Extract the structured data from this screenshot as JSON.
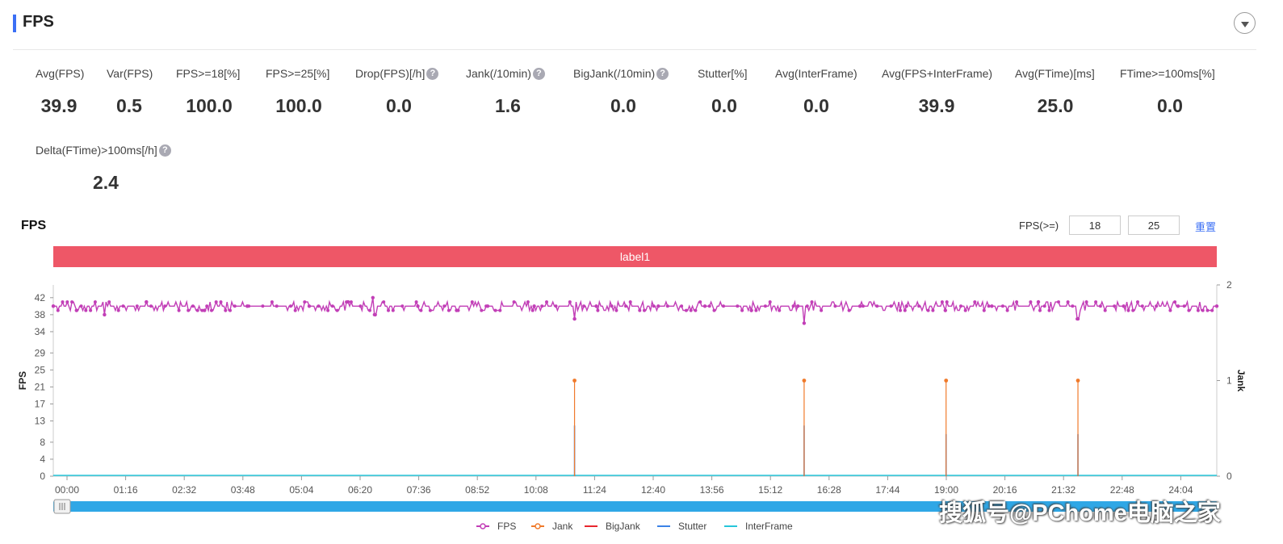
{
  "header": {
    "title": "FPS"
  },
  "metrics": [
    {
      "label": "Avg(FPS)",
      "value": "39.9",
      "help": false
    },
    {
      "label": "Var(FPS)",
      "value": "0.5",
      "help": false
    },
    {
      "label": "FPS>=18[%]",
      "value": "100.0",
      "help": false
    },
    {
      "label": "FPS>=25[%]",
      "value": "100.0",
      "help": false
    },
    {
      "label": "Drop(FPS)[/h]",
      "value": "0.0",
      "help": true
    },
    {
      "label": "Jank(/10min)",
      "value": "1.6",
      "help": true
    },
    {
      "label": "BigJank(/10min)",
      "value": "0.0",
      "help": true
    },
    {
      "label": "Stutter[%]",
      "value": "0.0",
      "help": false
    },
    {
      "label": "Avg(InterFrame)",
      "value": "0.0",
      "help": false
    },
    {
      "label": "Avg(FPS+InterFrame)",
      "value": "39.9",
      "help": false
    },
    {
      "label": "Avg(FTime)[ms]",
      "value": "25.0",
      "help": false
    },
    {
      "label": "FTime>=100ms[%]",
      "value": "0.0",
      "help": false
    },
    {
      "label": "Delta(FTime)>100ms[/h]",
      "value": "2.4",
      "help": true
    }
  ],
  "help_glyph": "?",
  "chart_section": {
    "title": "FPS",
    "threshold_label": "FPS(>=)",
    "threshold_low": "18",
    "threshold_high": "25",
    "reset_label": "重置",
    "band_label": "label1"
  },
  "watermark": "搜狐号@PChome电脑之家",
  "chart_data": {
    "type": "line",
    "ylabel": "FPS",
    "y2label": "Jank",
    "y_ticks": [
      0,
      4,
      8,
      13,
      17,
      21,
      25,
      29,
      34,
      38,
      42
    ],
    "y_range": [
      0,
      45
    ],
    "y2_ticks": [
      0,
      1,
      2
    ],
    "y2_range": [
      0,
      2
    ],
    "x_ticks": [
      "00:00",
      "01:16",
      "02:32",
      "03:48",
      "05:04",
      "06:20",
      "07:36",
      "08:52",
      "10:08",
      "11:24",
      "12:40",
      "13:56",
      "15:12",
      "16:28",
      "17:44",
      "19:00",
      "20:16",
      "21:32",
      "22:48",
      "24:04"
    ],
    "x_range_minutes": [
      0,
      1500
    ],
    "series": [
      {
        "name": "FPS",
        "color": "#c23fb7",
        "marker": "circle",
        "baseline": 40,
        "sampled_points": [
          [
            0,
            40
          ],
          [
            30,
            39
          ],
          [
            66,
            38
          ],
          [
            120,
            41
          ],
          [
            195,
            39
          ],
          [
            250,
            40
          ],
          [
            330,
            40
          ],
          [
            380,
            41
          ],
          [
            412,
            42
          ],
          [
            415,
            38
          ],
          [
            470,
            40
          ],
          [
            520,
            39
          ],
          [
            560,
            40
          ],
          [
            620,
            40
          ],
          [
            672,
            37
          ],
          [
            700,
            40
          ],
          [
            780,
            40
          ],
          [
            840,
            40
          ],
          [
            900,
            39
          ],
          [
            960,
            40
          ],
          [
            968,
            36
          ],
          [
            1040,
            40
          ],
          [
            1100,
            40
          ],
          [
            1150,
            39
          ],
          [
            1210,
            40
          ],
          [
            1270,
            41
          ],
          [
            1321,
            37
          ],
          [
            1380,
            40
          ],
          [
            1450,
            40
          ],
          [
            1500,
            40
          ]
        ]
      },
      {
        "name": "Jank",
        "color": "#f07a2b",
        "marker": "circle",
        "axis": "right",
        "spikes": [
          [
            672,
            1
          ],
          [
            968,
            1
          ],
          [
            1151,
            1
          ],
          [
            1321,
            1
          ]
        ]
      },
      {
        "name": "BigJank",
        "color": "#e8262e",
        "marker": "line",
        "values": []
      },
      {
        "name": "Stutter",
        "color": "#3b82e6",
        "marker": "line",
        "axis": "right",
        "spikes": [
          [
            672,
            0.53
          ],
          [
            968,
            0.53
          ],
          [
            1151,
            0.44
          ],
          [
            1321,
            0.44
          ]
        ]
      },
      {
        "name": "InterFrame",
        "color": "#26c6da",
        "marker": "line",
        "values": []
      }
    ],
    "legend_position": "bottom-center",
    "grid": false
  }
}
